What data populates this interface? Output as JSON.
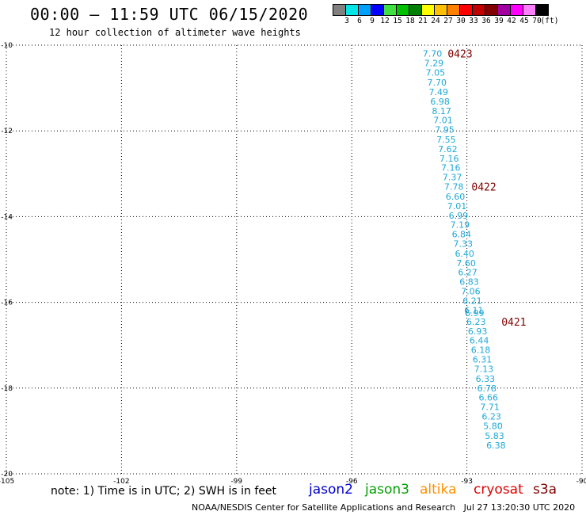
{
  "header": {
    "title": "00:00 – 11:59 UTC 06/15/2020",
    "subtitle": "12 hour collection of altimeter wave heights"
  },
  "legend": {
    "colors": [
      "#808080",
      "#00e6e6",
      "#00a0ff",
      "#0000ff",
      "#40e040",
      "#00c000",
      "#008000",
      "#ffff00",
      "#ffc000",
      "#ff8000",
      "#ff0000",
      "#c00000",
      "#800000",
      "#a000a0",
      "#ff00ff",
      "#ff80ff",
      "#000000"
    ],
    "ticks": [
      "3",
      "6",
      "9",
      "12",
      "15",
      "18",
      "21",
      "24",
      "27",
      "30",
      "33",
      "36",
      "39",
      "42",
      "45",
      "70",
      "(ft)"
    ]
  },
  "map": {
    "lon_range": [
      -105,
      -90
    ],
    "lat_range": [
      -20,
      -10
    ],
    "lon_ticks": [
      -105,
      -102,
      -99,
      -96,
      -93,
      -90
    ],
    "lat_ticks": [
      -10,
      -12,
      -14,
      -16,
      -18,
      -20
    ],
    "lon_tick_labels": [
      "-105",
      "-102",
      "-99",
      "-96",
      "-93",
      "-90"
    ],
    "lat_tick_labels": [
      "-10",
      "-12",
      "-14",
      "-16",
      "-18",
      "-20"
    ],
    "track_color": "#1fa8d8",
    "time_color": "#800000"
  },
  "track": [
    {
      "lon": -93.9,
      "lat": -10.19,
      "swh": "7.70"
    },
    {
      "lon": -93.86,
      "lat": -10.42,
      "swh": "7.29"
    },
    {
      "lon": -93.82,
      "lat": -10.64,
      "swh": "7.05"
    },
    {
      "lon": -93.78,
      "lat": -10.87,
      "swh": "7.70"
    },
    {
      "lon": -93.74,
      "lat": -11.09,
      "swh": "7.49"
    },
    {
      "lon": -93.7,
      "lat": -11.31,
      "swh": "6.98"
    },
    {
      "lon": -93.66,
      "lat": -11.53,
      "swh": "8.17"
    },
    {
      "lon": -93.62,
      "lat": -11.75,
      "swh": "7.01"
    },
    {
      "lon": -93.58,
      "lat": -11.97,
      "swh": "7.95"
    },
    {
      "lon": -93.54,
      "lat": -12.2,
      "swh": "7.55"
    },
    {
      "lon": -93.5,
      "lat": -12.42,
      "swh": "7.62"
    },
    {
      "lon": -93.46,
      "lat": -12.64,
      "swh": "7.16"
    },
    {
      "lon": -93.42,
      "lat": -12.86,
      "swh": "7.16"
    },
    {
      "lon": -93.38,
      "lat": -13.08,
      "swh": "7.37"
    },
    {
      "lon": -93.34,
      "lat": -13.3,
      "swh": "7.78"
    },
    {
      "lon": -93.3,
      "lat": -13.53,
      "swh": "6.60"
    },
    {
      "lon": -93.26,
      "lat": -13.75,
      "swh": "7.01"
    },
    {
      "lon": -93.22,
      "lat": -13.97,
      "swh": "6.99"
    },
    {
      "lon": -93.18,
      "lat": -14.19,
      "swh": "7.19"
    },
    {
      "lon": -93.14,
      "lat": -14.41,
      "swh": "6.84"
    },
    {
      "lon": -93.1,
      "lat": -14.63,
      "swh": "7.33"
    },
    {
      "lon": -93.06,
      "lat": -14.86,
      "swh": "6.40"
    },
    {
      "lon": -93.02,
      "lat": -15.08,
      "swh": "7.60"
    },
    {
      "lon": -92.98,
      "lat": -15.3,
      "swh": "6.27"
    },
    {
      "lon": -92.94,
      "lat": -15.52,
      "swh": "6.83"
    },
    {
      "lon": -92.9,
      "lat": -15.74,
      "swh": "7.06"
    },
    {
      "lon": -92.86,
      "lat": -15.96,
      "swh": "6.21"
    },
    {
      "lon": -92.82,
      "lat": -16.18,
      "swh": "6.11"
    },
    {
      "lon": -92.8,
      "lat": -16.25,
      "swh": "6.99"
    },
    {
      "lon": -92.76,
      "lat": -16.45,
      "swh": "6.23"
    },
    {
      "lon": -92.72,
      "lat": -16.67,
      "swh": "6.93"
    },
    {
      "lon": -92.68,
      "lat": -16.89,
      "swh": "6.44"
    },
    {
      "lon": -92.64,
      "lat": -17.11,
      "swh": "6.18"
    },
    {
      "lon": -92.6,
      "lat": -17.33,
      "swh": "6.31"
    },
    {
      "lon": -92.56,
      "lat": -17.55,
      "swh": "7.13"
    },
    {
      "lon": -92.52,
      "lat": -17.78,
      "swh": "6.33"
    },
    {
      "lon": -92.48,
      "lat": -18.0,
      "swh": "6.78"
    },
    {
      "lon": -92.44,
      "lat": -18.22,
      "swh": "6.66"
    },
    {
      "lon": -92.4,
      "lat": -18.44,
      "swh": "7.71"
    },
    {
      "lon": -92.36,
      "lat": -18.66,
      "swh": "6.23"
    },
    {
      "lon": -92.32,
      "lat": -18.88,
      "swh": "5.80"
    },
    {
      "lon": -92.28,
      "lat": -19.11,
      "swh": "5.83"
    },
    {
      "lon": -92.24,
      "lat": -19.33,
      "swh": "6.38"
    }
  ],
  "time_labels": [
    {
      "lon": -93.5,
      "lat": -10.19,
      "text": "0423"
    },
    {
      "lon": -92.88,
      "lat": -13.3,
      "text": "0422"
    },
    {
      "lon": -92.1,
      "lat": -16.45,
      "text": "0421"
    }
  ],
  "footer": {
    "note": "note: 1) Time is in UTC; 2) SWH is in feet",
    "satellites": [
      {
        "name": "jason2",
        "color": "#0000d0"
      },
      {
        "name": "jason3",
        "color": "#00a000"
      },
      {
        "name": "altika",
        "color": "#ff9000"
      },
      {
        "name": "cryosat",
        "color": "#e00000"
      },
      {
        "name": "s3a",
        "color": "#800000"
      }
    ],
    "credit": "NOAA/NESDIS Center for Satellite Applications and Research   Jul 27 13:20:30 UTC 2020"
  }
}
